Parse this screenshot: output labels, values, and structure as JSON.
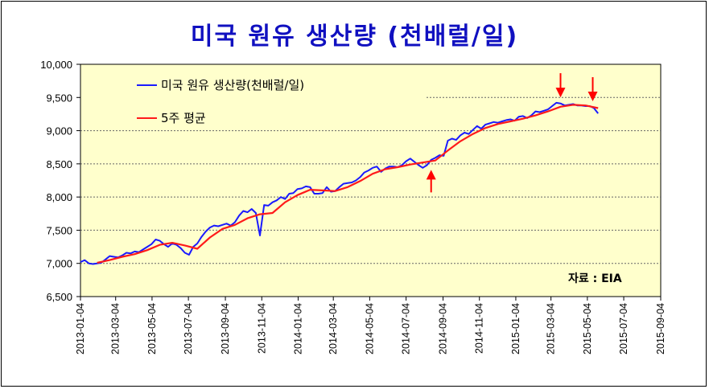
{
  "chart_data": {
    "type": "line",
    "title": "미국 원유 생산량 (천배럴/일)",
    "source": "자료 : EIA",
    "ylim": [
      6500,
      10000
    ],
    "yticks": [
      "10,000",
      "9,500",
      "9,000",
      "8,500",
      "8,000",
      "7,500",
      "7,000",
      "6,500"
    ],
    "ytick_values": [
      10000,
      9500,
      9000,
      8500,
      8000,
      7500,
      7000,
      6500
    ],
    "xlim": [
      "2013-01-04",
      "2015-09-04"
    ],
    "xticks": [
      "2013-01-04",
      "2013-03-04",
      "2013-05-04",
      "2013-07-04",
      "2013-09-04",
      "2013-11-04",
      "2014-01-04",
      "2014-03-04",
      "2014-05-04",
      "2014-07-04",
      "2014-09-04",
      "2014-11-04",
      "2015-01-04",
      "2015-03-04",
      "2015-05-04",
      "2015-07-04",
      "2015-09-04"
    ],
    "legend_position": "top-left",
    "grid": true,
    "series": [
      {
        "name": "미국 원유 생산량(천배럴/일)",
        "color": "#1a1aff",
        "points": [
          [
            "2013-01-04",
            7020
          ],
          [
            "2013-01-11",
            7050
          ],
          [
            "2013-01-18",
            7000
          ],
          [
            "2013-01-25",
            6990
          ],
          [
            "2013-02-01",
            7000
          ],
          [
            "2013-02-08",
            7010
          ],
          [
            "2013-02-15",
            7060
          ],
          [
            "2013-02-22",
            7110
          ],
          [
            "2013-03-01",
            7100
          ],
          [
            "2013-03-08",
            7090
          ],
          [
            "2013-03-15",
            7120
          ],
          [
            "2013-03-22",
            7160
          ],
          [
            "2013-03-29",
            7150
          ],
          [
            "2013-04-05",
            7180
          ],
          [
            "2013-04-12",
            7170
          ],
          [
            "2013-04-19",
            7210
          ],
          [
            "2013-04-26",
            7250
          ],
          [
            "2013-05-03",
            7290
          ],
          [
            "2013-05-10",
            7360
          ],
          [
            "2013-05-17",
            7340
          ],
          [
            "2013-05-24",
            7290
          ],
          [
            "2013-05-31",
            7250
          ],
          [
            "2013-06-07",
            7300
          ],
          [
            "2013-06-14",
            7280
          ],
          [
            "2013-06-21",
            7230
          ],
          [
            "2013-06-28",
            7160
          ],
          [
            "2013-07-05",
            7130
          ],
          [
            "2013-07-12",
            7250
          ],
          [
            "2013-07-19",
            7300
          ],
          [
            "2013-07-26",
            7400
          ],
          [
            "2013-08-02",
            7480
          ],
          [
            "2013-08-09",
            7540
          ],
          [
            "2013-08-16",
            7570
          ],
          [
            "2013-08-23",
            7560
          ],
          [
            "2013-08-30",
            7580
          ],
          [
            "2013-09-06",
            7600
          ],
          [
            "2013-09-13",
            7570
          ],
          [
            "2013-09-20",
            7620
          ],
          [
            "2013-09-27",
            7720
          ],
          [
            "2013-10-04",
            7790
          ],
          [
            "2013-10-11",
            7770
          ],
          [
            "2013-10-18",
            7820
          ],
          [
            "2013-10-25",
            7760
          ],
          [
            "2013-11-01",
            7420
          ],
          [
            "2013-11-08",
            7880
          ],
          [
            "2013-11-15",
            7870
          ],
          [
            "2013-11-22",
            7920
          ],
          [
            "2013-11-29",
            7950
          ],
          [
            "2013-12-06",
            8000
          ],
          [
            "2013-12-13",
            7970
          ],
          [
            "2013-12-20",
            8050
          ],
          [
            "2013-12-27",
            8060
          ],
          [
            "2014-01-03",
            8120
          ],
          [
            "2014-01-10",
            8130
          ],
          [
            "2014-01-17",
            8160
          ],
          [
            "2014-01-24",
            8150
          ],
          [
            "2014-01-31",
            8050
          ],
          [
            "2014-02-07",
            8050
          ],
          [
            "2014-02-14",
            8060
          ],
          [
            "2014-02-21",
            8150
          ],
          [
            "2014-02-28",
            8080
          ],
          [
            "2014-03-07",
            8090
          ],
          [
            "2014-03-14",
            8150
          ],
          [
            "2014-03-21",
            8200
          ],
          [
            "2014-03-28",
            8210
          ],
          [
            "2014-04-04",
            8220
          ],
          [
            "2014-04-11",
            8250
          ],
          [
            "2014-04-18",
            8300
          ],
          [
            "2014-04-25",
            8370
          ],
          [
            "2014-05-02",
            8400
          ],
          [
            "2014-05-09",
            8440
          ],
          [
            "2014-05-16",
            8460
          ],
          [
            "2014-05-23",
            8380
          ],
          [
            "2014-05-30",
            8430
          ],
          [
            "2014-06-06",
            8460
          ],
          [
            "2014-06-13",
            8460
          ],
          [
            "2014-06-20",
            8450
          ],
          [
            "2014-06-27",
            8480
          ],
          [
            "2014-07-04",
            8540
          ],
          [
            "2014-07-11",
            8580
          ],
          [
            "2014-07-18",
            8530
          ],
          [
            "2014-07-25",
            8480
          ],
          [
            "2014-08-01",
            8440
          ],
          [
            "2014-08-08",
            8480
          ],
          [
            "2014-08-15",
            8560
          ],
          [
            "2014-08-22",
            8590
          ],
          [
            "2014-08-29",
            8630
          ],
          [
            "2014-09-05",
            8620
          ],
          [
            "2014-09-12",
            8850
          ],
          [
            "2014-09-19",
            8880
          ],
          [
            "2014-09-26",
            8860
          ],
          [
            "2014-10-03",
            8930
          ],
          [
            "2014-10-10",
            8970
          ],
          [
            "2014-10-17",
            8950
          ],
          [
            "2014-10-24",
            9010
          ],
          [
            "2014-10-31",
            9070
          ],
          [
            "2014-11-07",
            9030
          ],
          [
            "2014-11-14",
            9090
          ],
          [
            "2014-11-21",
            9110
          ],
          [
            "2014-11-28",
            9130
          ],
          [
            "2014-12-05",
            9120
          ],
          [
            "2014-12-12",
            9140
          ],
          [
            "2014-12-19",
            9160
          ],
          [
            "2014-12-26",
            9170
          ],
          [
            "2015-01-02",
            9150
          ],
          [
            "2015-01-09",
            9210
          ],
          [
            "2015-01-16",
            9220
          ],
          [
            "2015-01-23",
            9190
          ],
          [
            "2015-01-30",
            9230
          ],
          [
            "2015-02-06",
            9290
          ],
          [
            "2015-02-13",
            9280
          ],
          [
            "2015-02-20",
            9300
          ],
          [
            "2015-02-27",
            9320
          ],
          [
            "2015-03-06",
            9370
          ],
          [
            "2015-03-13",
            9420
          ],
          [
            "2015-03-20",
            9410
          ],
          [
            "2015-03-27",
            9380
          ],
          [
            "2015-04-03",
            9390
          ],
          [
            "2015-04-10",
            9400
          ],
          [
            "2015-04-17",
            9380
          ],
          [
            "2015-04-24",
            9380
          ],
          [
            "2015-05-01",
            9370
          ],
          [
            "2015-05-08",
            9370
          ],
          [
            "2015-05-15",
            9340
          ],
          [
            "2015-05-22",
            9260
          ]
        ]
      },
      {
        "name": "5주 평균",
        "color": "#ff1a1a",
        "points": [
          [
            "2013-02-01",
            7010
          ],
          [
            "2013-02-22",
            7050
          ],
          [
            "2013-03-15",
            7100
          ],
          [
            "2013-04-05",
            7140
          ],
          [
            "2013-04-26",
            7200
          ],
          [
            "2013-05-17",
            7280
          ],
          [
            "2013-06-07",
            7310
          ],
          [
            "2013-06-28",
            7270
          ],
          [
            "2013-07-19",
            7220
          ],
          [
            "2013-08-09",
            7390
          ],
          [
            "2013-08-30",
            7520
          ],
          [
            "2013-09-20",
            7580
          ],
          [
            "2013-10-11",
            7680
          ],
          [
            "2013-11-01",
            7740
          ],
          [
            "2013-11-22",
            7760
          ],
          [
            "2013-12-13",
            7920
          ],
          [
            "2014-01-03",
            8030
          ],
          [
            "2014-01-24",
            8110
          ],
          [
            "2014-02-14",
            8100
          ],
          [
            "2014-03-07",
            8090
          ],
          [
            "2014-03-28",
            8150
          ],
          [
            "2014-04-18",
            8240
          ],
          [
            "2014-05-09",
            8350
          ],
          [
            "2014-05-30",
            8420
          ],
          [
            "2014-06-20",
            8450
          ],
          [
            "2014-07-11",
            8490
          ],
          [
            "2014-08-01",
            8520
          ],
          [
            "2014-08-22",
            8550
          ],
          [
            "2014-09-12",
            8700
          ],
          [
            "2014-10-03",
            8840
          ],
          [
            "2014-10-24",
            8950
          ],
          [
            "2014-11-14",
            9040
          ],
          [
            "2014-12-05",
            9100
          ],
          [
            "2014-12-26",
            9140
          ],
          [
            "2015-01-16",
            9180
          ],
          [
            "2015-02-06",
            9230
          ],
          [
            "2015-02-27",
            9290
          ],
          [
            "2015-03-20",
            9360
          ],
          [
            "2015-04-10",
            9390
          ],
          [
            "2015-05-01",
            9380
          ],
          [
            "2015-05-22",
            9340
          ]
        ]
      }
    ],
    "annotations": [
      {
        "type": "arrow-down",
        "x": "2015-03-20",
        "y": 9430,
        "color": "#ff0000"
      },
      {
        "type": "arrow-down",
        "x": "2015-05-13",
        "y": 9370,
        "color": "#ff0000"
      },
      {
        "type": "arrow-up",
        "x": "2014-08-15",
        "y": 8530,
        "color": "#ff0000"
      }
    ]
  }
}
